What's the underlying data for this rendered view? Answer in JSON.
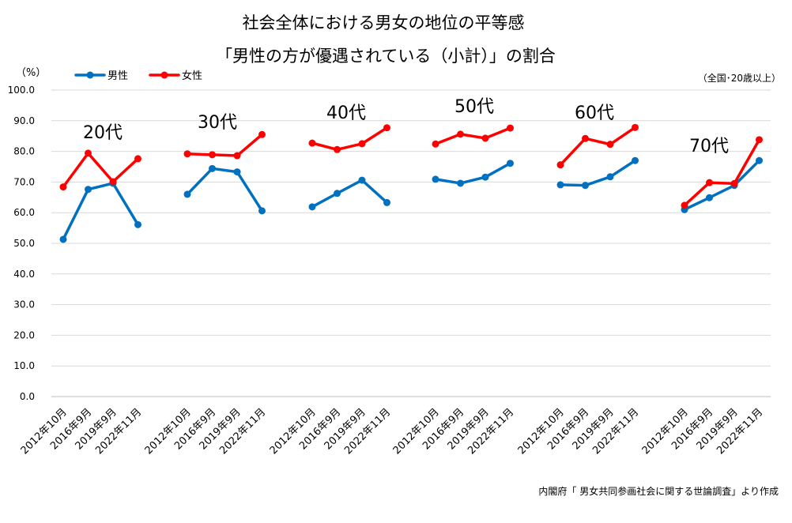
{
  "chart_data": {
    "type": "line",
    "title_line1": "社会全体における男女の地位の平等感",
    "title_line2": "「男性の方が優遇されている（小計）」の割合",
    "y_unit_label": "（%）",
    "scope_note": "（全国･20歳以上）",
    "source": "内閣府「 男女共同参画社会に関する世論調査」より作成",
    "ylim": [
      0,
      100
    ],
    "y_ticks": [
      "0.0",
      "10.0",
      "20.0",
      "30.0",
      "40.0",
      "50.0",
      "60.0",
      "70.0",
      "80.0",
      "90.0",
      "100.0"
    ],
    "grid": true,
    "legend_position": "top-left",
    "series_names": [
      "男性",
      "女性"
    ],
    "series_colors": [
      "#0070C0",
      "#FF0000"
    ],
    "x_categories": [
      "2012年10月",
      "2016年9月",
      "2019年9月",
      "2022年11月"
    ],
    "groups": [
      {
        "label": "20代",
        "values": {
          "男性": [
            51.3,
            67.6,
            69.6,
            56.1
          ],
          "女性": [
            68.4,
            79.4,
            70.1,
            77.6
          ]
        }
      },
      {
        "label": "30代",
        "values": {
          "男性": [
            66.0,
            74.4,
            73.3,
            60.6
          ],
          "女性": [
            79.2,
            78.9,
            78.6,
            85.5
          ]
        }
      },
      {
        "label": "40代",
        "values": {
          "男性": [
            61.9,
            66.3,
            70.6,
            63.3
          ],
          "女性": [
            82.7,
            80.6,
            82.5,
            87.7
          ]
        }
      },
      {
        "label": "50代",
        "values": {
          "男性": [
            70.9,
            69.6,
            71.6,
            76.1
          ],
          "女性": [
            82.4,
            85.6,
            84.3,
            87.6
          ]
        }
      },
      {
        "label": "60代",
        "values": {
          "男性": [
            69.1,
            68.9,
            71.7,
            77.0
          ],
          "女性": [
            75.6,
            84.2,
            82.3,
            87.8
          ]
        }
      },
      {
        "label": "70代",
        "values": {
          "男性": [
            61.0,
            64.9,
            68.9,
            77.0
          ],
          "女性": [
            62.4,
            69.8,
            69.5,
            83.8
          ]
        }
      }
    ]
  }
}
